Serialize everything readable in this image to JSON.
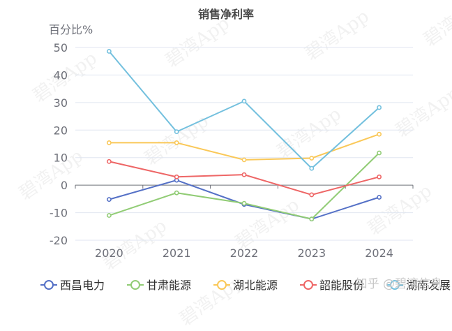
{
  "watermark": "碧湾App",
  "credit": "知乎 @碧湾信息",
  "chart_data": {
    "type": "line",
    "title": "销售净利率",
    "ylabel": "百分比%",
    "xlabel": "",
    "x": [
      "2020",
      "2021",
      "2022",
      "2023",
      "2024"
    ],
    "ylim": [
      -20,
      50
    ],
    "yticks": [
      50,
      40,
      30,
      20,
      10,
      0,
      -10,
      -20
    ],
    "grid": true,
    "legend": "bottom",
    "series": [
      {
        "name": "西昌电力",
        "color": "#5470c6",
        "values": [
          -5.2,
          1.8,
          -7.0,
          -12.3,
          -4.4
        ]
      },
      {
        "name": "甘肃能源",
        "color": "#91cc75",
        "values": [
          -11.0,
          -2.8,
          -6.6,
          -12.3,
          11.7
        ]
      },
      {
        "name": "湖北能源",
        "color": "#fac858",
        "values": [
          15.4,
          15.4,
          9.2,
          9.8,
          18.5
        ]
      },
      {
        "name": "韶能股份",
        "color": "#ee6666",
        "values": [
          8.6,
          3.0,
          3.8,
          -3.5,
          3.0
        ]
      },
      {
        "name": "湖南发展",
        "color": "#73c0de",
        "values": [
          48.6,
          19.4,
          30.5,
          6.1,
          28.2
        ]
      }
    ]
  }
}
